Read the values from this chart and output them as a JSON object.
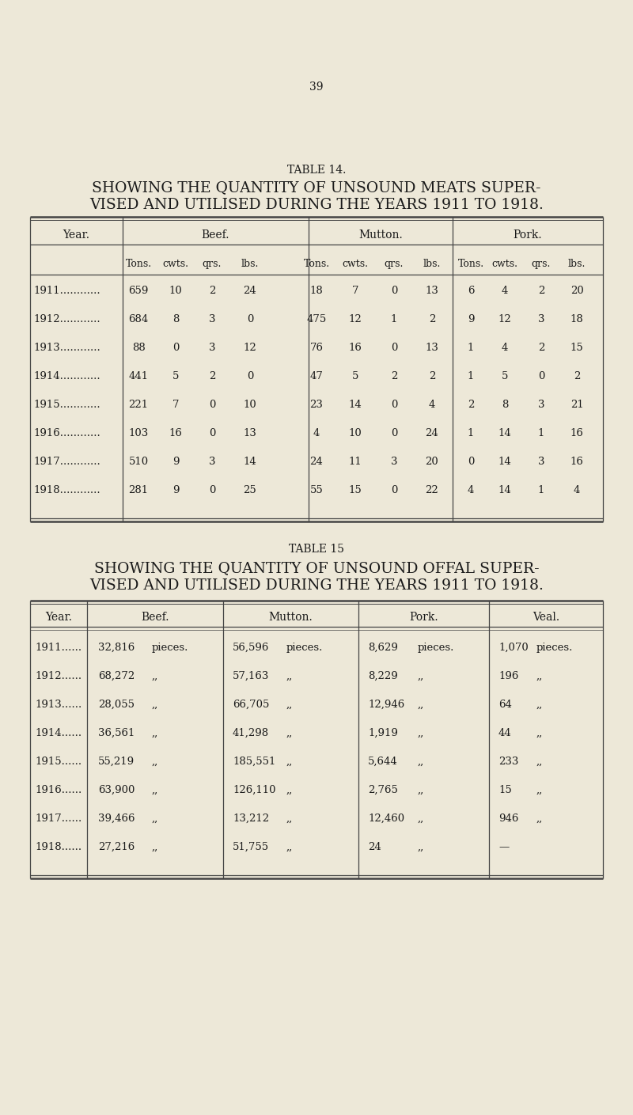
{
  "bg_color": "#ede8d8",
  "text_color": "#1a1a1a",
  "page_number": "39",
  "table14": {
    "title_line1": "TABLE 14.",
    "title_line2": "SHOWING THE QUANTITY OF UNSOUND MEATS SUPER-",
    "title_line3": "VISED AND UTILISED DURING THE YEARS 1911 TO 1918.",
    "rows": [
      [
        "1911............",
        "659",
        "10",
        "2",
        "24",
        "18",
        "7",
        "0",
        "13",
        "6",
        "4",
        "2",
        "20"
      ],
      [
        "1912............",
        "684",
        "8",
        "3",
        "0",
        "475",
        "12",
        "1",
        "2",
        "9",
        "12",
        "3",
        "18"
      ],
      [
        "1913............",
        "88",
        "0",
        "3",
        "12",
        "76",
        "16",
        "0",
        "13",
        "1",
        "4",
        "2",
        "15"
      ],
      [
        "1914............",
        "441",
        "5",
        "2",
        "0",
        "47",
        "5",
        "2",
        "2",
        "1",
        "5",
        "0",
        "2"
      ],
      [
        "1915............",
        "221",
        "7",
        "0",
        "10",
        "23",
        "14",
        "0",
        "4",
        "2",
        "8",
        "3",
        "21"
      ],
      [
        "1916............",
        "103",
        "16",
        "0",
        "13",
        "4",
        "10",
        "0",
        "24",
        "1",
        "14",
        "1",
        "16"
      ],
      [
        "1917............",
        "510",
        "9",
        "3",
        "14",
        "24",
        "11",
        "3",
        "20",
        "0",
        "14",
        "3",
        "16"
      ],
      [
        "1918............",
        "281",
        "9",
        "0",
        "25",
        "55",
        "15",
        "0",
        "22",
        "4",
        "14",
        "1",
        "4"
      ]
    ]
  },
  "table15": {
    "title_line1": "TABLE 15",
    "title_line2": "SHOWING THE QUANTITY OF UNSOUND OFFAL SUPER-",
    "title_line3": "VISED AND UTILISED DURING THE YEARS 1911 TO 1918.",
    "col_headers": [
      "Year.",
      "Beef.",
      "Mutton.",
      "Pork.",
      "Veal."
    ],
    "rows": [
      [
        "1911......",
        "32,816",
        "pieces.",
        "56,596",
        "pieces.",
        "8,629",
        "pieces.",
        "1,070",
        "pieces."
      ],
      [
        "1912......",
        "68,272",
        ",,",
        "57,163",
        ",,",
        "8,229",
        ",,",
        "196",
        ",,"
      ],
      [
        "1913......",
        "28,055",
        ",,",
        "66,705",
        ",,",
        "12,946",
        ",,",
        "64",
        ",,"
      ],
      [
        "1914......",
        "36,561",
        ",,",
        "41,298",
        ",,",
        "1,919",
        ",,",
        "44",
        ",,"
      ],
      [
        "1915......",
        "55,219",
        ",,",
        "185,551",
        ",,",
        "5,644",
        ",,",
        "233",
        ",,"
      ],
      [
        "1916......",
        "63,900",
        ",,",
        "126,110",
        ",,",
        "2,765",
        ",,",
        "15",
        ",,"
      ],
      [
        "1917......",
        "39,466",
        ",,",
        "13,212",
        ",,",
        "12,460",
        ",,",
        "946",
        ",,"
      ],
      [
        "1918......",
        "27,216",
        ",,",
        "51,755",
        ",,",
        "24",
        ",,",
        "—",
        ""
      ]
    ]
  }
}
